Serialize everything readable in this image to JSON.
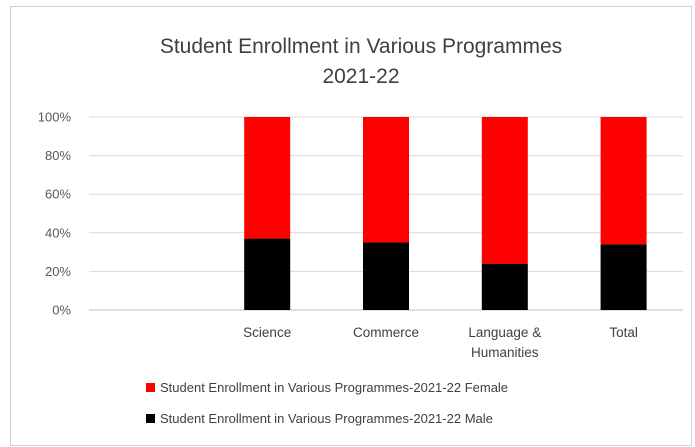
{
  "chart_data": {
    "type": "bar",
    "stacked": "percent",
    "title": "Student Enrollment in Various Programmes",
    "subtitle": "2021-22",
    "categories": [
      "",
      "Science",
      "Commerce",
      "Language & Humanities",
      "Total"
    ],
    "category_label_lines": [
      [
        ""
      ],
      [
        "Science"
      ],
      [
        "Commerce"
      ],
      [
        "Language &",
        "Humanities"
      ],
      [
        "Total"
      ]
    ],
    "series": [
      {
        "name": "Student Enrollment in Various Programmes-2021-22 Male",
        "color": "#000000",
        "values": [
          0,
          37,
          35,
          24,
          34
        ]
      },
      {
        "name": "Student Enrollment in Various Programmes-2021-22 Female",
        "color": "#ff0000",
        "values": [
          0,
          63,
          65,
          76,
          66
        ]
      }
    ],
    "y_ticks": [
      "0%",
      "20%",
      "40%",
      "60%",
      "80%",
      "100%"
    ],
    "ylim": [
      0,
      100
    ],
    "grid": true,
    "legend_position": "bottom",
    "legend_order": [
      1,
      0
    ]
  }
}
